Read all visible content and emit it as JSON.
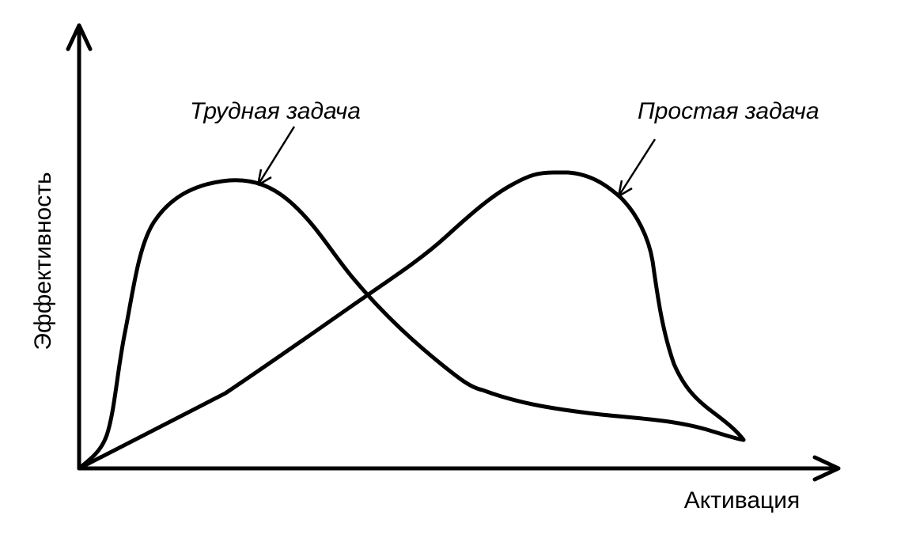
{
  "y_axis": {
    "label": "Эффективность"
  },
  "x_axis": {
    "label": "Активация"
  },
  "curves": [
    {
      "label": "Трудная задача"
    },
    {
      "label": "Простая задача"
    }
  ]
}
